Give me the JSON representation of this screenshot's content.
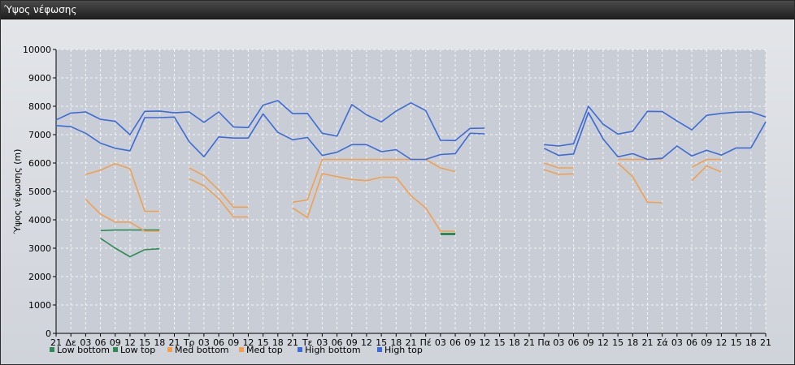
{
  "window": {
    "title": "Ύψος νέφωσης"
  },
  "colors": {
    "low": "#2e8b57",
    "med": "#f0a050",
    "high": "#3d6ad6",
    "grid": "#ffffff",
    "plot_bg": "#c9ced6"
  },
  "chart_data": {
    "type": "line",
    "title": "",
    "xlabel": "",
    "ylabel": "Ύψος νέφωσης (m)",
    "ylim": [
      0,
      10000
    ],
    "yticks": [
      0,
      1000,
      2000,
      3000,
      4000,
      5000,
      6000,
      7000,
      8000,
      9000,
      10000
    ],
    "grid": true,
    "legend_position": "bottom-left",
    "categories": [
      "21",
      "Δε",
      "03",
      "06",
      "09",
      "12",
      "15",
      "18",
      "21",
      "Τρ",
      "03",
      "06",
      "09",
      "12",
      "15",
      "18",
      "21",
      "Τε",
      "03",
      "06",
      "09",
      "12",
      "15",
      "18",
      "21",
      "Πέ",
      "03",
      "06",
      "09",
      "12",
      "15",
      "18",
      "21",
      "Πα",
      "03",
      "06",
      "09",
      "12",
      "15",
      "18",
      "21",
      "Σά",
      "03",
      "06",
      "09",
      "12",
      "15",
      "18",
      "21"
    ],
    "series": [
      {
        "name": "Low bottom",
        "color": "#2e8b57",
        "values": [
          null,
          null,
          null,
          3350,
          3000,
          2700,
          2950,
          2980,
          null,
          null,
          null,
          null,
          null,
          null,
          null,
          null,
          null,
          null,
          null,
          null,
          null,
          null,
          null,
          null,
          null,
          null,
          3480,
          3480,
          null,
          null,
          null,
          null,
          null,
          null,
          null,
          null,
          null,
          null,
          null,
          null,
          null,
          null,
          null,
          null,
          null,
          null,
          null,
          null,
          null
        ]
      },
      {
        "name": "Low top",
        "color": "#2e8b57",
        "values": [
          null,
          null,
          null,
          3620,
          3640,
          3640,
          3640,
          3640,
          null,
          null,
          null,
          null,
          null,
          null,
          null,
          null,
          null,
          null,
          null,
          null,
          null,
          null,
          null,
          null,
          null,
          null,
          3520,
          3520,
          null,
          null,
          null,
          null,
          null,
          null,
          null,
          null,
          null,
          null,
          null,
          null,
          null,
          null,
          null,
          null,
          null,
          null,
          null,
          null,
          null
        ]
      },
      {
        "name": "Med bottom",
        "color": "#f0a050",
        "values": [
          null,
          null,
          4720,
          4200,
          3920,
          3920,
          3600,
          3600,
          null,
          5450,
          5200,
          4750,
          4100,
          4100,
          null,
          null,
          4420,
          4080,
          5630,
          5520,
          5420,
          5380,
          5500,
          5500,
          4850,
          4420,
          3600,
          3600,
          null,
          null,
          null,
          null,
          null,
          5770,
          5600,
          5620,
          null,
          null,
          6000,
          5520,
          4620,
          4600,
          null,
          5380,
          5900,
          5680,
          null,
          null,
          null
        ]
      },
      {
        "name": "Med top",
        "color": "#f0a050",
        "values": [
          null,
          null,
          5600,
          5750,
          5980,
          5800,
          4300,
          4300,
          null,
          5830,
          5550,
          5050,
          4450,
          4450,
          null,
          null,
          4620,
          4700,
          6130,
          6130,
          6130,
          6130,
          6130,
          6130,
          6130,
          6130,
          5830,
          5700,
          null,
          null,
          null,
          null,
          null,
          6000,
          5830,
          5830,
          null,
          null,
          6130,
          6130,
          6130,
          6130,
          null,
          5850,
          6130,
          6130,
          null,
          null,
          null
        ]
      },
      {
        "name": "High bottom",
        "color": "#3d6ad6",
        "values": [
          7320,
          7280,
          7050,
          6700,
          6520,
          6430,
          7600,
          7600,
          7620,
          6750,
          6220,
          6920,
          6880,
          6880,
          7730,
          7080,
          6820,
          6900,
          6270,
          6380,
          6650,
          6650,
          6400,
          6470,
          6130,
          6130,
          6300,
          6330,
          7050,
          7030,
          null,
          null,
          null,
          6520,
          6270,
          6320,
          7780,
          6850,
          6220,
          6330,
          6130,
          6170,
          6600,
          6250,
          6450,
          6280,
          6530,
          6530,
          7450
        ]
      },
      {
        "name": "High top",
        "color": "#3d6ad6",
        "values": [
          7520,
          7760,
          7800,
          7540,
          7470,
          7000,
          7820,
          7830,
          7770,
          7800,
          7430,
          7800,
          7270,
          7250,
          8040,
          8200,
          7740,
          7750,
          7050,
          6950,
          8060,
          7700,
          7450,
          7830,
          8120,
          7850,
          6800,
          6790,
          7220,
          7230,
          null,
          null,
          null,
          6650,
          6600,
          6680,
          8000,
          7370,
          7020,
          7120,
          7820,
          7810,
          7480,
          7170,
          7680,
          7750,
          7790,
          7800,
          7620
        ]
      }
    ]
  }
}
